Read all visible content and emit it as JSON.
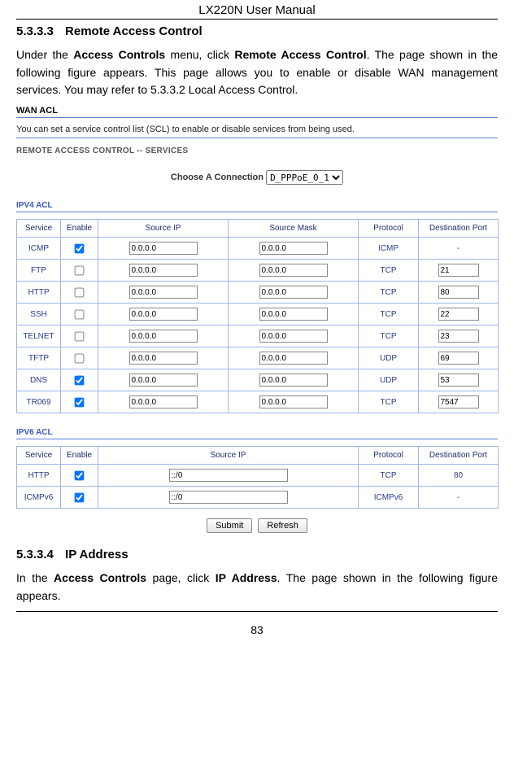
{
  "doc": {
    "header": "LX220N User Manual",
    "pagenum": "83",
    "section1_num": "5.3.3.3",
    "section1_title": "Remote Access Control",
    "section1_body_pre": "Under the ",
    "section1_body_b1": "Access Controls",
    "section1_body_mid": " menu, click ",
    "section1_body_b2": "Remote Access Control",
    "section1_body_post": ". The page shown in the following figure appears. This page allows you to enable or disable WAN management services. You may refer to 5.3.3.2 Local Access Control.",
    "section2_num": "5.3.3.4",
    "section2_title": "IP Address",
    "section2_body_pre": "In the ",
    "section2_body_b1": "Access Controls",
    "section2_body_mid": " page, click ",
    "section2_body_b2": "IP Address",
    "section2_body_post": ". The page shown in the following figure appears."
  },
  "ui": {
    "wan_acl_title": "WAN ACL",
    "wan_acl_desc": "You can set a service control list (SCL) to enable or disable services from being used.",
    "rac_services": "REMOTE ACCESS CONTROL -- SERVICES",
    "choose_label": "Choose A Connection",
    "choose_value": "D_PPPoE_0_1",
    "ipv4_label": "IPV4 ACL",
    "ipv6_label": "IPV6 ACL",
    "headers4": {
      "service": "Service",
      "enable": "Enable",
      "sip": "Source IP",
      "smask": "Source Mask",
      "proto": "Protocol",
      "dport": "Destination Port"
    },
    "headers6": {
      "service": "Service",
      "enable": "Enable",
      "sip": "Source IP",
      "proto": "Protocol",
      "dport": "Destination Port"
    },
    "rows4": [
      {
        "service": "ICMP",
        "enable": true,
        "sip": "0.0.0.0",
        "smask": "0.0.0.0",
        "proto": "ICMP",
        "port": "-",
        "port_input": false
      },
      {
        "service": "FTP",
        "enable": false,
        "sip": "0.0.0.0",
        "smask": "0.0.0.0",
        "proto": "TCP",
        "port": "21",
        "port_input": true
      },
      {
        "service": "HTTP",
        "enable": false,
        "sip": "0.0.0.0",
        "smask": "0.0.0.0",
        "proto": "TCP",
        "port": "80",
        "port_input": true
      },
      {
        "service": "SSH",
        "enable": false,
        "sip": "0.0.0.0",
        "smask": "0.0.0.0",
        "proto": "TCP",
        "port": "22",
        "port_input": true
      },
      {
        "service": "TELNET",
        "enable": false,
        "sip": "0.0.0.0",
        "smask": "0.0.0.0",
        "proto": "TCP",
        "port": "23",
        "port_input": true
      },
      {
        "service": "TFTP",
        "enable": false,
        "sip": "0.0.0.0",
        "smask": "0.0.0.0",
        "proto": "UDP",
        "port": "69",
        "port_input": true
      },
      {
        "service": "DNS",
        "enable": true,
        "sip": "0.0.0.0",
        "smask": "0.0.0.0",
        "proto": "UDP",
        "port": "53",
        "port_input": true
      },
      {
        "service": "TR069",
        "enable": true,
        "sip": "0.0.0.0",
        "smask": "0.0.0.0",
        "proto": "TCP",
        "port": "7547",
        "port_input": true
      }
    ],
    "rows6": [
      {
        "service": "HTTP",
        "enable": true,
        "sip": "::/0",
        "proto": "TCP",
        "port": "80",
        "port_input": false
      },
      {
        "service": "ICMPv6",
        "enable": true,
        "sip": "::/0",
        "proto": "ICMPv6",
        "port": "-",
        "port_input": false
      }
    ],
    "btn_submit": "Submit",
    "btn_refresh": "Refresh",
    "colors": {
      "rule": "#5a7fd9",
      "cell_border": "#9db5e8",
      "cell_text": "#2a3a8a",
      "acl_label": "#3a57c4"
    },
    "col_widths4": {
      "service": 54,
      "enable": 46,
      "sip": 160,
      "smask": 160,
      "proto": 74,
      "dport": 98
    },
    "col_widths6": {
      "service": 54,
      "enable": 46,
      "sip": 320,
      "proto": 74,
      "dport": 98
    }
  }
}
